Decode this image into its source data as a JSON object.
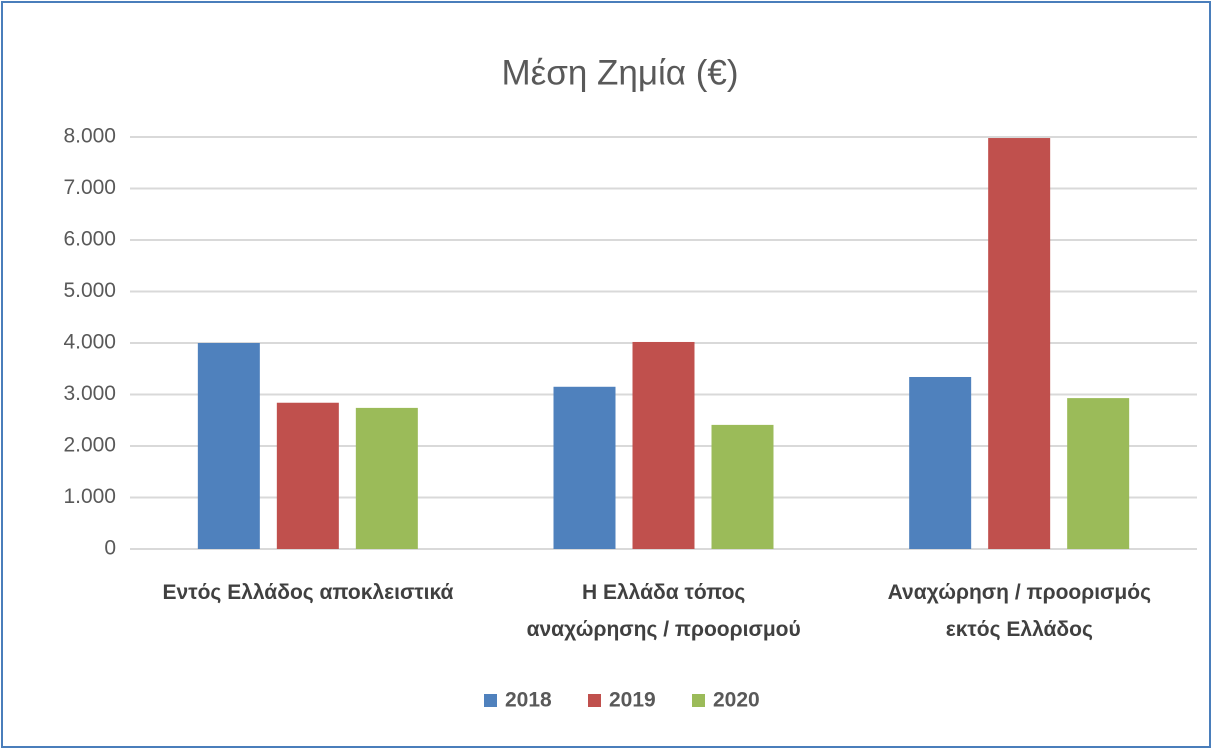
{
  "chart_data": {
    "type": "bar",
    "title": "Μέση Ζημία (€)",
    "categories": [
      "Εντός Ελλάδος αποκλειστικά",
      "Η Ελλάδα τόπος\nαναχώρησης / προορισμού",
      "Αναχώρηση / προορισμός\nεκτός Ελλάδος"
    ],
    "series": [
      {
        "name": "2018",
        "color": "#4f81bd",
        "values": [
          4000,
          3150,
          3340
        ]
      },
      {
        "name": "2019",
        "color": "#c0504d",
        "values": [
          2840,
          4020,
          7980
        ]
      },
      {
        "name": "2020",
        "color": "#9bbb59",
        "values": [
          2740,
          2410,
          2930
        ]
      }
    ],
    "ylim": [
      0,
      8000
    ],
    "yticks": [
      0,
      {
        "value": 1000,
        "label": "1.000"
      },
      {
        "value": 2000,
        "label": "2.000"
      },
      {
        "value": 3000,
        "label": "3.000"
      },
      {
        "value": 4000,
        "label": "4.000"
      },
      {
        "value": 5000,
        "label": "5.000"
      },
      {
        "value": 6000,
        "label": "6.000"
      },
      {
        "value": 7000,
        "label": "7.000"
      },
      {
        "value": 8000,
        "label": "8.000"
      }
    ],
    "grid": true,
    "legend": "bottom"
  }
}
